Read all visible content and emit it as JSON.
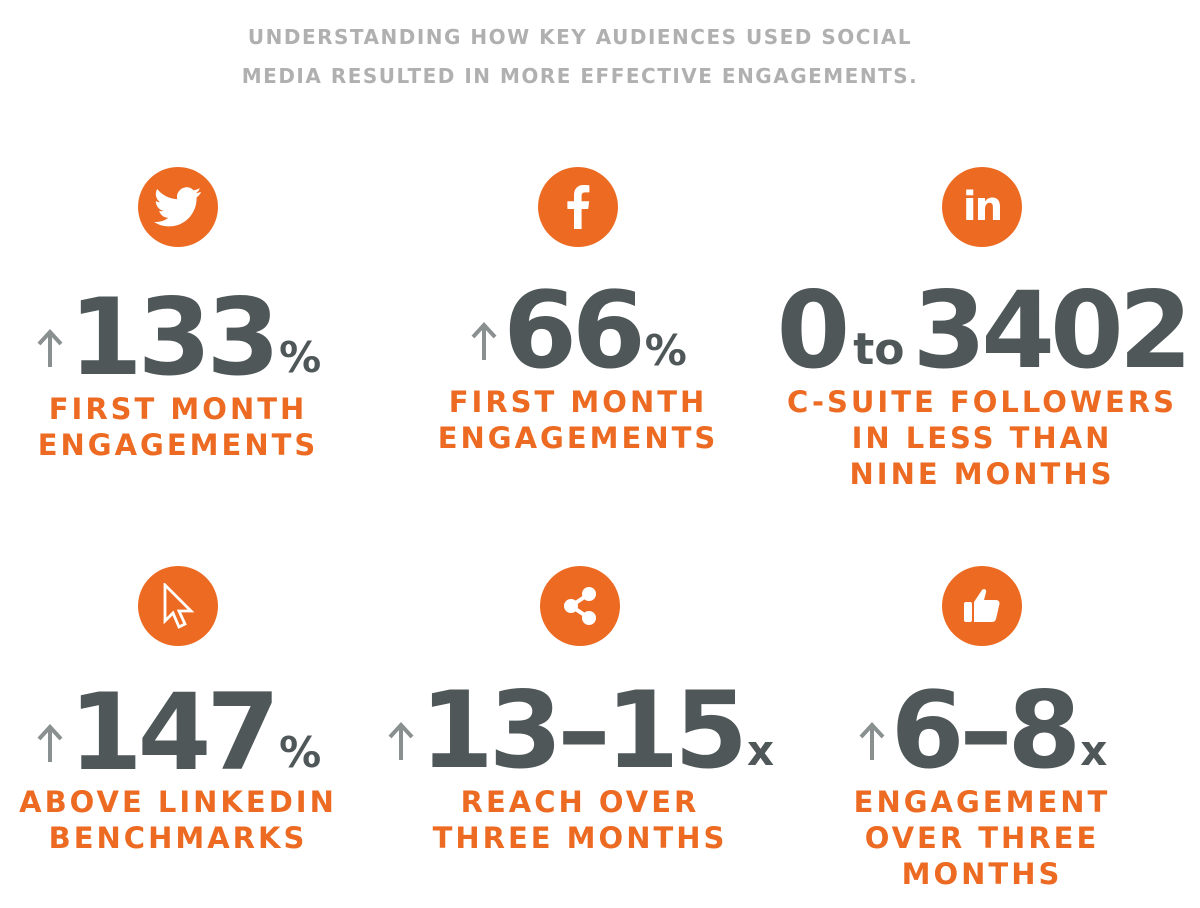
{
  "header": {
    "line1": "UNDERSTANDING HOW KEY AUDIENCES USED SOCIAL",
    "line2": "MEDIA RESULTED IN MORE EFFECTIVE ENGAGEMENTS."
  },
  "colors": {
    "accent": "#ec6a22",
    "stat": "#4f5759",
    "header": "#b0b0b0",
    "arrow": "#8a8f90"
  },
  "stats": [
    {
      "icon": "twitter-icon",
      "value": "133",
      "unit": "%",
      "label": [
        "FIRST MONTH",
        "ENGAGEMENTS"
      ]
    },
    {
      "icon": "facebook-icon",
      "value": "66",
      "unit": "%",
      "label": [
        "FIRST MONTH",
        "ENGAGEMENTS"
      ]
    },
    {
      "icon": "linkedin-icon",
      "from": "0",
      "to_word": "to",
      "value": "3402",
      "label": [
        "C-SUITE FOLLOWERS",
        "IN LESS THAN",
        "NINE MONTHS"
      ]
    },
    {
      "icon": "cursor-icon",
      "value": "147",
      "unit": "%",
      "label": [
        "ABOVE LINKEDIN",
        "BENCHMARKS"
      ]
    },
    {
      "icon": "share-icon",
      "value": "13–15",
      "unit": "x",
      "label": [
        "REACH OVER",
        "THREE MONTHS"
      ]
    },
    {
      "icon": "thumbs-up-icon",
      "value": "6–8",
      "unit": "x",
      "label": [
        "ENGAGEMENT",
        "OVER THREE",
        "MONTHS"
      ]
    }
  ]
}
